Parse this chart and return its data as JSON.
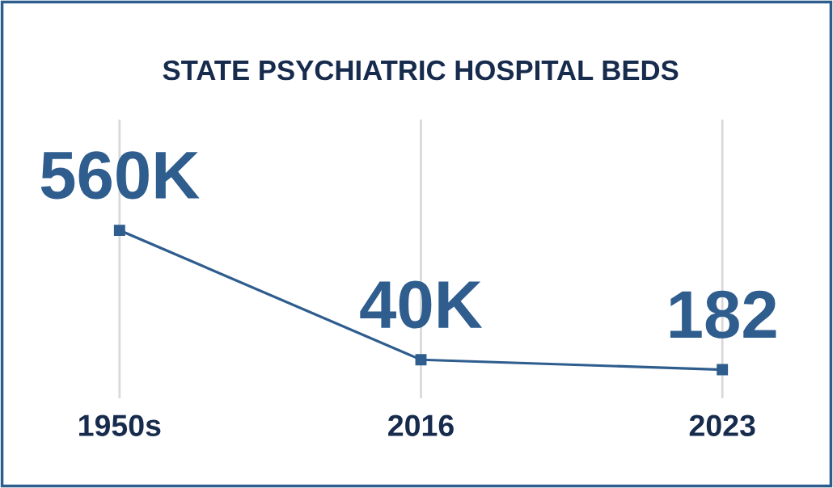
{
  "chart_data": {
    "type": "line",
    "title": "STATE PSYCHIATRIC HOSPITAL BEDS",
    "categories": [
      "1950s",
      "2016",
      "2023"
    ],
    "series": [
      {
        "color": "#2e5d8e",
        "values": [
          560000,
          40000,
          182
        ],
        "value_labels": [
          "560K",
          "40K",
          "182"
        ]
      }
    ],
    "ylim": [
      -115000,
      1005000
    ],
    "tick_labels": "x",
    "grid": "x",
    "marker": "square",
    "line_style": "solid"
  }
}
